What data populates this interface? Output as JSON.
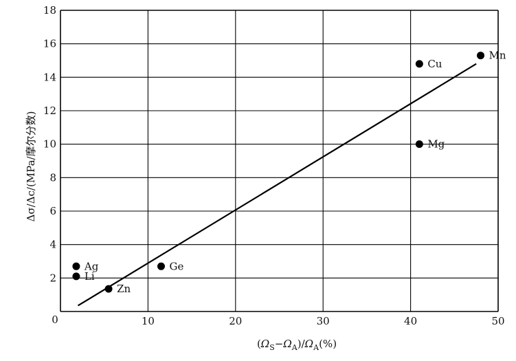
{
  "chart_data": {
    "type": "scatter",
    "title": "",
    "xlabel": "(ΩS−ΩA)/ΩA(%)",
    "ylabel": "Δσ/Δc/(MPa/摩尔分数)",
    "xlim": [
      0,
      50
    ],
    "ylim": [
      0,
      18
    ],
    "x_ticks": [
      0,
      10,
      20,
      30,
      40,
      50
    ],
    "y_ticks": [
      2,
      4,
      6,
      8,
      10,
      12,
      14,
      16,
      18
    ],
    "x_tick_labels": [
      "0",
      "10",
      "20",
      "30",
      "40",
      "50"
    ],
    "y_tick_labels": [
      "2",
      "4",
      "6",
      "8",
      "10",
      "12",
      "14",
      "16",
      "18"
    ],
    "origin_label": "0",
    "grid": true,
    "points": [
      {
        "label": "Ag",
        "x": 1.8,
        "y": 2.7
      },
      {
        "label": "Li",
        "x": 1.8,
        "y": 2.1
      },
      {
        "label": "Zn",
        "x": 5.5,
        "y": 1.35
      },
      {
        "label": "Ge",
        "x": 11.5,
        "y": 2.7
      },
      {
        "label": "Cu",
        "x": 41.0,
        "y": 14.8
      },
      {
        "label": "Mg",
        "x": 41.0,
        "y": 10.0
      },
      {
        "label": "Mn",
        "x": 48.0,
        "y": 15.3
      }
    ],
    "fit_line": {
      "x": [
        2.0,
        47.5
      ],
      "y": [
        0.35,
        14.8
      ]
    },
    "colors": {
      "marker": "#000000",
      "line": "#000000",
      "grid": "#000000"
    }
  }
}
